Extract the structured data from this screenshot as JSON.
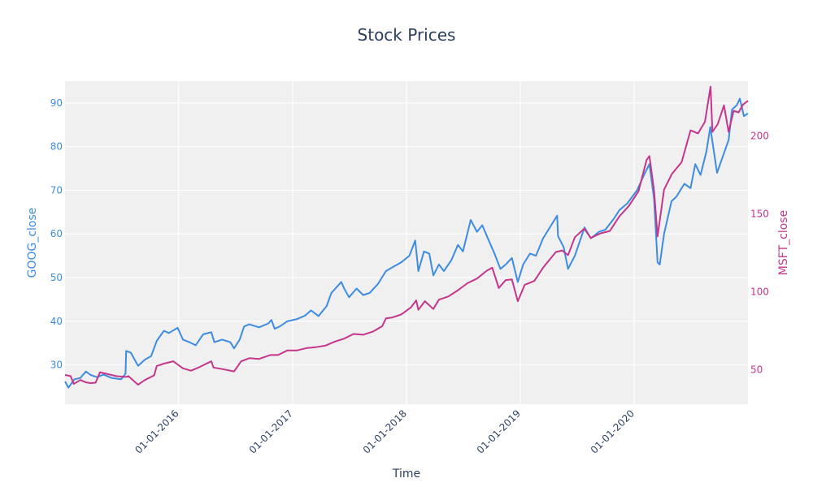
{
  "chart_data": {
    "type": "line",
    "title": "Stock Prices",
    "xlabel": "Time",
    "ylabel_left": "GOOG_close",
    "ylabel_right": "MSFT_close",
    "colors": {
      "goog": "#3d8ce0",
      "msft": "#c4368b",
      "plot_bg": "#f0f0f0",
      "grid": "#ffffff",
      "title": "#2a3f5f"
    },
    "grid": true,
    "x_range": [
      "2015-01-02",
      "2020-12-31"
    ],
    "y_left_range": [
      21,
      95
    ],
    "y_right_range": [
      28,
      235
    ],
    "x_ticks": [
      {
        "date": "2016-01-01",
        "label": "01-01-2016"
      },
      {
        "date": "2017-01-01",
        "label": "01-01-2017"
      },
      {
        "date": "2018-01-01",
        "label": "01-01-2018"
      },
      {
        "date": "2019-01-01",
        "label": "01-01-2019"
      },
      {
        "date": "2020-01-01",
        "label": "01-01-2020"
      }
    ],
    "y_left_ticks": [
      30,
      40,
      50,
      60,
      70,
      80,
      90
    ],
    "y_right_ticks": [
      50,
      100,
      150,
      200
    ],
    "series": [
      {
        "name": "GOOG_close",
        "axis": "left",
        "points": [
          [
            "2015-01-02",
            26.2
          ],
          [
            "2015-01-13",
            24.8
          ],
          [
            "2015-02-01",
            26.7
          ],
          [
            "2015-02-20",
            27.0
          ],
          [
            "2015-03-10",
            28.5
          ],
          [
            "2015-03-25",
            27.7
          ],
          [
            "2015-04-15",
            27.2
          ],
          [
            "2015-05-05",
            27.8
          ],
          [
            "2015-06-01",
            27.0
          ],
          [
            "2015-07-01",
            26.7
          ],
          [
            "2015-07-15",
            28.0
          ],
          [
            "2015-07-17",
            33.2
          ],
          [
            "2015-08-01",
            32.8
          ],
          [
            "2015-08-24",
            29.8
          ],
          [
            "2015-09-15",
            31.2
          ],
          [
            "2015-10-05",
            32.0
          ],
          [
            "2015-10-23",
            35.5
          ],
          [
            "2015-11-15",
            37.8
          ],
          [
            "2015-12-01",
            37.3
          ],
          [
            "2015-12-29",
            38.5
          ],
          [
            "2016-01-15",
            35.8
          ],
          [
            "2016-02-05",
            35.2
          ],
          [
            "2016-02-25",
            34.5
          ],
          [
            "2016-03-20",
            37.0
          ],
          [
            "2016-04-15",
            37.5
          ],
          [
            "2016-04-25",
            35.2
          ],
          [
            "2016-05-20",
            35.8
          ],
          [
            "2016-06-15",
            35.2
          ],
          [
            "2016-06-27",
            33.8
          ],
          [
            "2016-07-15",
            35.8
          ],
          [
            "2016-07-29",
            38.8
          ],
          [
            "2016-08-15",
            39.3
          ],
          [
            "2016-09-15",
            38.6
          ],
          [
            "2016-10-15",
            39.5
          ],
          [
            "2016-10-25",
            40.3
          ],
          [
            "2016-11-04",
            38.3
          ],
          [
            "2016-11-20",
            38.8
          ],
          [
            "2016-12-15",
            40.0
          ],
          [
            "2017-01-15",
            40.5
          ],
          [
            "2017-02-10",
            41.3
          ],
          [
            "2017-03-01",
            42.5
          ],
          [
            "2017-03-25",
            41.2
          ],
          [
            "2017-04-20",
            43.5
          ],
          [
            "2017-05-05",
            46.5
          ],
          [
            "2017-06-06",
            49.0
          ],
          [
            "2017-06-15",
            47.5
          ],
          [
            "2017-07-01",
            45.5
          ],
          [
            "2017-07-25",
            47.5
          ],
          [
            "2017-08-15",
            46.0
          ],
          [
            "2017-09-05",
            46.5
          ],
          [
            "2017-10-01",
            48.5
          ],
          [
            "2017-10-27",
            51.5
          ],
          [
            "2017-11-20",
            52.5
          ],
          [
            "2017-12-15",
            53.5
          ],
          [
            "2018-01-10",
            55.0
          ],
          [
            "2018-01-29",
            58.5
          ],
          [
            "2018-02-08",
            51.5
          ],
          [
            "2018-02-26",
            56.0
          ],
          [
            "2018-03-15",
            55.5
          ],
          [
            "2018-03-28",
            50.5
          ],
          [
            "2018-04-15",
            53.0
          ],
          [
            "2018-05-01",
            51.5
          ],
          [
            "2018-05-25",
            54.0
          ],
          [
            "2018-06-15",
            57.5
          ],
          [
            "2018-07-01",
            56.0
          ],
          [
            "2018-07-26",
            63.2
          ],
          [
            "2018-08-15",
            60.5
          ],
          [
            "2018-09-01",
            62.0
          ],
          [
            "2018-09-20",
            58.8
          ],
          [
            "2018-10-10",
            55.5
          ],
          [
            "2018-10-29",
            52.0
          ],
          [
            "2018-11-15",
            53.0
          ],
          [
            "2018-12-05",
            54.5
          ],
          [
            "2018-12-24",
            49.0
          ],
          [
            "2019-01-10",
            53.0
          ],
          [
            "2019-02-01",
            55.5
          ],
          [
            "2019-02-20",
            55.0
          ],
          [
            "2019-03-15",
            59.0
          ],
          [
            "2019-04-29",
            64.2
          ],
          [
            "2019-05-02",
            59.5
          ],
          [
            "2019-05-20",
            57.0
          ],
          [
            "2019-06-03",
            52.0
          ],
          [
            "2019-06-25",
            55.0
          ],
          [
            "2019-07-26",
            61.5
          ],
          [
            "2019-08-15",
            59.0
          ],
          [
            "2019-09-10",
            60.5
          ],
          [
            "2019-10-01",
            61.0
          ],
          [
            "2019-10-28",
            63.5
          ],
          [
            "2019-11-15",
            65.5
          ],
          [
            "2019-12-10",
            67.0
          ],
          [
            "2020-01-10",
            70.0
          ],
          [
            "2020-02-05",
            74.0
          ],
          [
            "2020-02-19",
            76.0
          ],
          [
            "2020-03-05",
            68.0
          ],
          [
            "2020-03-16",
            53.5
          ],
          [
            "2020-03-23",
            53.0
          ],
          [
            "2020-04-06",
            60.0
          ],
          [
            "2020-04-30",
            67.5
          ],
          [
            "2020-05-15",
            68.5
          ],
          [
            "2020-06-10",
            71.5
          ],
          [
            "2020-06-30",
            70.5
          ],
          [
            "2020-07-15",
            76.0
          ],
          [
            "2020-08-01",
            73.5
          ],
          [
            "2020-08-20",
            79.0
          ],
          [
            "2020-09-01",
            84.5
          ],
          [
            "2020-09-23",
            74.0
          ],
          [
            "2020-10-15",
            78.5
          ],
          [
            "2020-10-30",
            81.5
          ],
          [
            "2020-11-10",
            88.5
          ],
          [
            "2020-11-25",
            89.5
          ],
          [
            "2020-12-05",
            91.0
          ],
          [
            "2020-12-18",
            87.0
          ],
          [
            "2020-12-31",
            87.6
          ]
        ]
      },
      {
        "name": "MSFT_close",
        "axis": "right",
        "points": [
          [
            "2015-01-02",
            46.7
          ],
          [
            "2015-01-20",
            46.0
          ],
          [
            "2015-01-30",
            41.0
          ],
          [
            "2015-02-20",
            43.5
          ],
          [
            "2015-03-10",
            42.0
          ],
          [
            "2015-03-25",
            41.5
          ],
          [
            "2015-04-10",
            41.8
          ],
          [
            "2015-04-24",
            48.5
          ],
          [
            "2015-05-15",
            47.5
          ],
          [
            "2015-06-15",
            46.0
          ],
          [
            "2015-07-15",
            45.5
          ],
          [
            "2015-07-24",
            46.0
          ],
          [
            "2015-08-24",
            40.5
          ],
          [
            "2015-09-15",
            43.5
          ],
          [
            "2015-10-15",
            46.5
          ],
          [
            "2015-10-23",
            52.5
          ],
          [
            "2015-11-15",
            54.0
          ],
          [
            "2015-12-15",
            55.5
          ],
          [
            "2016-01-15",
            51.0
          ],
          [
            "2016-02-10",
            49.5
          ],
          [
            "2016-03-10",
            52.0
          ],
          [
            "2016-04-15",
            55.5
          ],
          [
            "2016-04-22",
            51.5
          ],
          [
            "2016-05-20",
            50.5
          ],
          [
            "2016-06-27",
            49.0
          ],
          [
            "2016-07-20",
            55.5
          ],
          [
            "2016-08-15",
            57.5
          ],
          [
            "2016-09-15",
            57.0
          ],
          [
            "2016-10-21",
            59.5
          ],
          [
            "2016-11-15",
            59.5
          ],
          [
            "2016-12-15",
            62.5
          ],
          [
            "2017-01-15",
            62.5
          ],
          [
            "2017-02-15",
            64.0
          ],
          [
            "2017-03-15",
            64.5
          ],
          [
            "2017-04-15",
            65.5
          ],
          [
            "2017-05-15",
            68.0
          ],
          [
            "2017-06-15",
            70.0
          ],
          [
            "2017-07-15",
            73.0
          ],
          [
            "2017-08-15",
            72.5
          ],
          [
            "2017-09-15",
            74.5
          ],
          [
            "2017-10-15",
            78.0
          ],
          [
            "2017-10-27",
            83.0
          ],
          [
            "2017-11-15",
            83.5
          ],
          [
            "2017-12-15",
            85.5
          ],
          [
            "2018-01-15",
            90.0
          ],
          [
            "2018-02-01",
            94.5
          ],
          [
            "2018-02-08",
            88.5
          ],
          [
            "2018-03-01",
            94.0
          ],
          [
            "2018-03-28",
            89.0
          ],
          [
            "2018-04-15",
            95.0
          ],
          [
            "2018-05-15",
            97.0
          ],
          [
            "2018-06-15",
            101.0
          ],
          [
            "2018-07-15",
            105.5
          ],
          [
            "2018-08-15",
            108.5
          ],
          [
            "2018-09-15",
            113.5
          ],
          [
            "2018-10-03",
            115.5
          ],
          [
            "2018-10-24",
            102.5
          ],
          [
            "2018-11-15",
            107.5
          ],
          [
            "2018-12-05",
            108.0
          ],
          [
            "2018-12-24",
            94.0
          ],
          [
            "2019-01-15",
            104.5
          ],
          [
            "2019-02-15",
            107.0
          ],
          [
            "2019-03-15",
            115.5
          ],
          [
            "2019-04-25",
            125.5
          ],
          [
            "2019-05-15",
            126.5
          ],
          [
            "2019-06-03",
            123.5
          ],
          [
            "2019-06-25",
            135.0
          ],
          [
            "2019-07-25",
            140.5
          ],
          [
            "2019-08-15",
            134.5
          ],
          [
            "2019-09-15",
            137.5
          ],
          [
            "2019-10-15",
            139.0
          ],
          [
            "2019-11-15",
            148.5
          ],
          [
            "2019-12-15",
            155.0
          ],
          [
            "2020-01-15",
            164.5
          ],
          [
            "2020-02-10",
            184.5
          ],
          [
            "2020-02-19",
            187.0
          ],
          [
            "2020-03-05",
            165.0
          ],
          [
            "2020-03-16",
            135.5
          ],
          [
            "2020-04-06",
            165.5
          ],
          [
            "2020-05-01",
            175.5
          ],
          [
            "2020-06-01",
            183.0
          ],
          [
            "2020-06-30",
            203.5
          ],
          [
            "2020-07-24",
            201.5
          ],
          [
            "2020-08-15",
            209.0
          ],
          [
            "2020-09-02",
            231.5
          ],
          [
            "2020-09-08",
            202.5
          ],
          [
            "2020-09-25",
            207.5
          ],
          [
            "2020-10-15",
            219.5
          ],
          [
            "2020-10-30",
            202.5
          ],
          [
            "2020-11-15",
            216.0
          ],
          [
            "2020-12-01",
            215.0
          ],
          [
            "2020-12-15",
            220.0
          ],
          [
            "2020-12-31",
            222.4
          ]
        ]
      }
    ]
  }
}
